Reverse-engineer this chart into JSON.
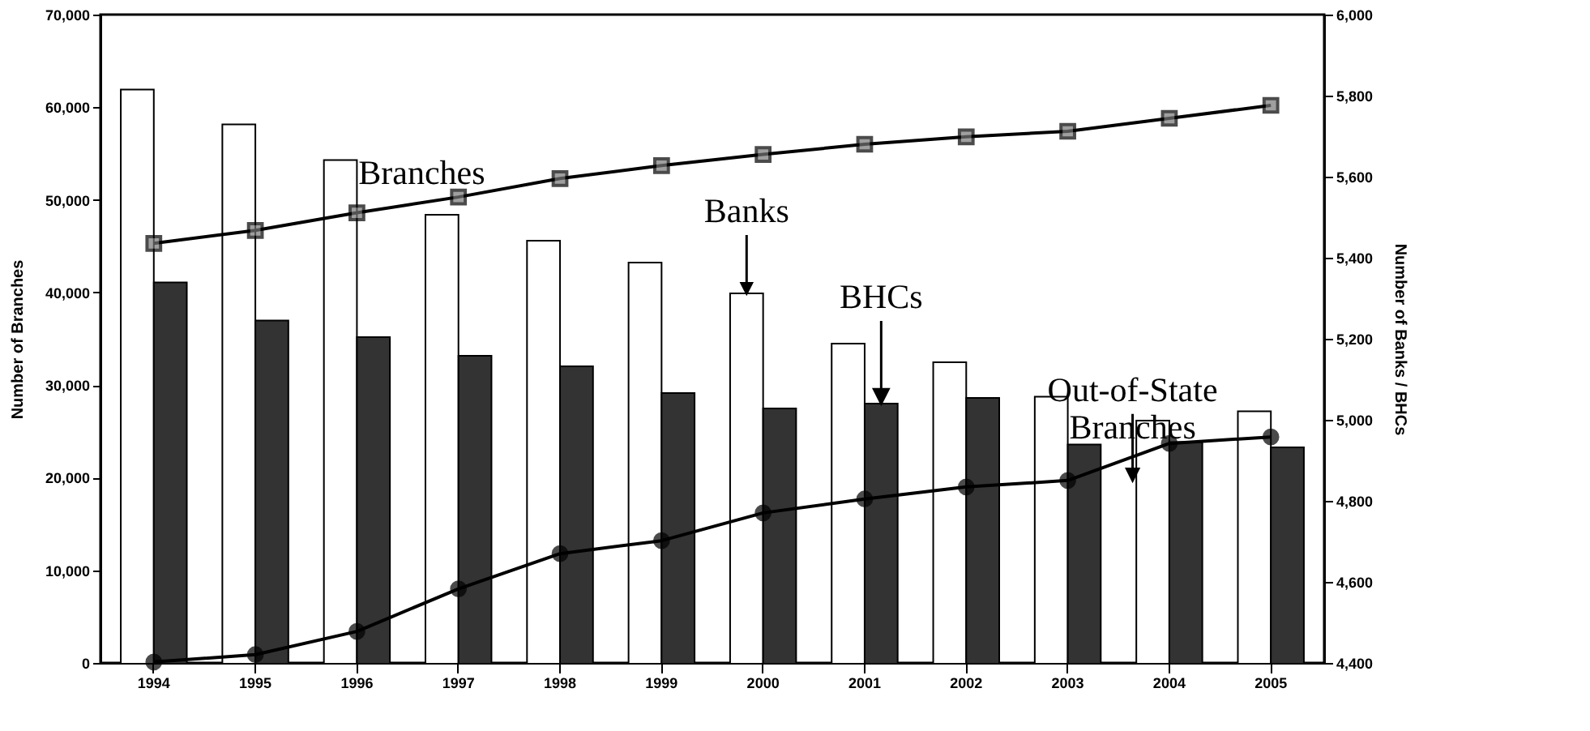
{
  "chart_data": {
    "type": "bar",
    "ylabel": "Number of Branches",
    "y2label": "Number of Banks / BHCs",
    "categories": [
      "1994",
      "1995",
      "1996",
      "1997",
      "1998",
      "1999",
      "2000",
      "2001",
      "2002",
      "2003",
      "2004",
      "2005"
    ],
    "series": [
      {
        "name": "Banks",
        "axis": "y2",
        "color": "#ffffff",
        "values": [
          5815,
          5729,
          5641,
          5506,
          5442,
          5388,
          5312,
          5188,
          5142,
          5057,
          4998,
          5021
        ]
      },
      {
        "name": "BHCs",
        "axis": "y2",
        "color": "#333333",
        "values": [
          5339,
          5245,
          5204,
          5158,
          5132,
          5066,
          5028,
          5040,
          5054,
          4939,
          4945,
          4932
        ]
      },
      {
        "name": "Branches",
        "type": "line",
        "axis": "y",
        "color": "#000000",
        "marker": "square",
        "values": [
          45300,
          46700,
          48600,
          50300,
          52300,
          53700,
          54900,
          56000,
          56800,
          57400,
          58800,
          60200
        ]
      },
      {
        "name": "Out-of-State Branches",
        "type": "line",
        "axis": "y",
        "color": "#000000",
        "marker": "circle",
        "values": [
          100,
          900,
          3400,
          8000,
          11800,
          13200,
          16200,
          17700,
          19000,
          19700,
          23700,
          24400
        ]
      }
    ],
    "ylim": [
      0,
      70000
    ],
    "yticks": [
      0,
      {
        "value": 10000,
        "label": "10,000"
      },
      {
        "value": 20000,
        "label": "20,000"
      },
      {
        "value": 30000,
        "label": "30,000"
      },
      {
        "value": 40000,
        "label": "40,000"
      },
      {
        "value": 50000,
        "label": "50,000"
      },
      {
        "value": 60000,
        "label": "60,000"
      },
      {
        "value": 70000,
        "label": "70,000"
      }
    ],
    "y2lim": [
      4400,
      6000
    ],
    "y2ticks": [
      {
        "value": 4400,
        "label": "4,400"
      },
      {
        "value": 4600,
        "label": "4,600"
      },
      {
        "value": 4800,
        "label": "4,800"
      },
      {
        "value": 5000,
        "label": "5,000"
      },
      {
        "value": 5200,
        "label": "5,200"
      },
      {
        "value": 5400,
        "label": "5,400"
      },
      {
        "value": 5600,
        "label": "5,600"
      },
      {
        "value": 5800,
        "label": "5,800"
      },
      {
        "value": 6000,
        "label": "6,000"
      }
    ],
    "grid": false,
    "legend": false,
    "line_style": "solid"
  }
}
